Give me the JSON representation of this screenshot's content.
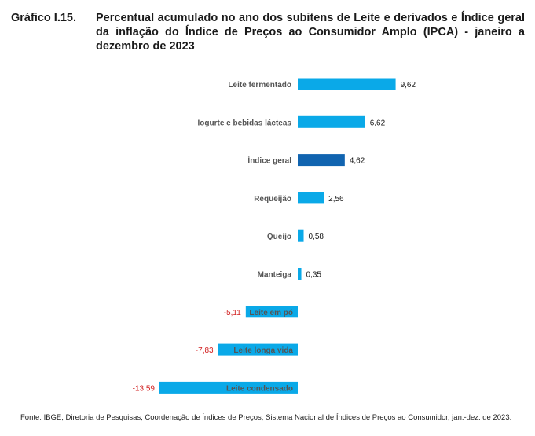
{
  "figure": {
    "label": "Gráfico I.15.",
    "title": "Percentual acumulado no ano dos subitens de Leite e derivados e Índice geral da inflação do Índice de Preços ao Consumidor Amplo (IPCA) - janeiro a dezembro de 2023",
    "source": "Fonte: IBGE, Diretoria de Pesquisas, Coordenação de Índices de Preços, Sistema Nacional de Índices de Preços ao Consumidor, jan.-dez. de 2023."
  },
  "chart_data": {
    "type": "bar",
    "orientation": "horizontal",
    "categories": [
      "Leite fermentado",
      "Iogurte e bebidas lácteas",
      "Índice geral",
      "Requeijão",
      "Queijo",
      "Manteiga",
      "Leite em pó",
      "Leite longa vida",
      "Leite condensado"
    ],
    "values": [
      9.62,
      6.62,
      4.62,
      2.56,
      0.58,
      0.35,
      -5.11,
      -7.83,
      -13.59
    ],
    "value_labels": [
      "9,62",
      "6,62",
      "4,62",
      "2,56",
      "0,58",
      "0,35",
      "-5,11",
      "-7,83",
      "-13,59"
    ],
    "highlight_category": "Índice geral",
    "grid": false,
    "legend": "none",
    "colors": {
      "bar": "#0aa9e8",
      "highlight": "#1164b0",
      "positive_label": "#1a1a1a",
      "negative_label": "#d22222",
      "category_label": "#555555"
    }
  }
}
